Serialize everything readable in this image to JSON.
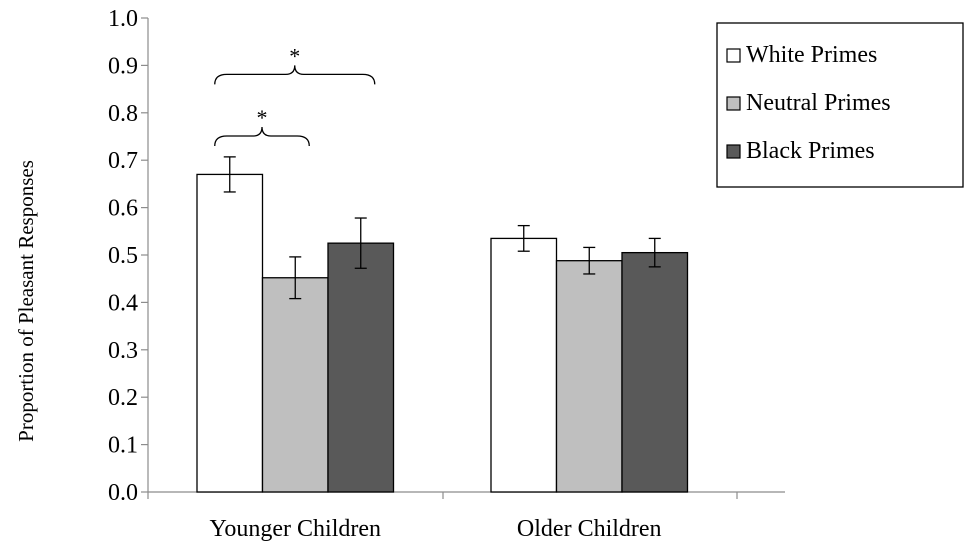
{
  "chart_data": {
    "type": "bar",
    "title": "",
    "xlabel": "",
    "ylabel": "Proportion of Pleasant Responses",
    "ylim": [
      0,
      1
    ],
    "yticks": [
      "0.0",
      "0.1",
      "0.2",
      "0.3",
      "0.4",
      "0.5",
      "0.6",
      "0.7",
      "0.8",
      "0.9",
      "1.0"
    ],
    "grid": false,
    "legend_position": "top-right",
    "categories": [
      "Younger Children",
      "Older Children"
    ],
    "series": [
      {
        "name": "White Primes",
        "color": "#ffffff",
        "values": [
          0.67,
          0.535
        ],
        "errors": [
          0.037,
          0.027
        ]
      },
      {
        "name": "Neutral Primes",
        "color": "#bfbfbf",
        "values": [
          0.452,
          0.488
        ],
        "errors": [
          0.044,
          0.028
        ]
      },
      {
        "name": "Black Primes",
        "color": "#595959",
        "values": [
          0.525,
          0.505
        ],
        "errors": [
          0.053,
          0.03
        ]
      }
    ],
    "annotations": [
      {
        "label": "*",
        "category": "Younger Children",
        "from_series": 0,
        "to_series": 1,
        "level": 0.77
      },
      {
        "label": "*",
        "category": "Younger Children",
        "from_series": 0,
        "to_series": 2,
        "level": 0.9
      }
    ]
  }
}
